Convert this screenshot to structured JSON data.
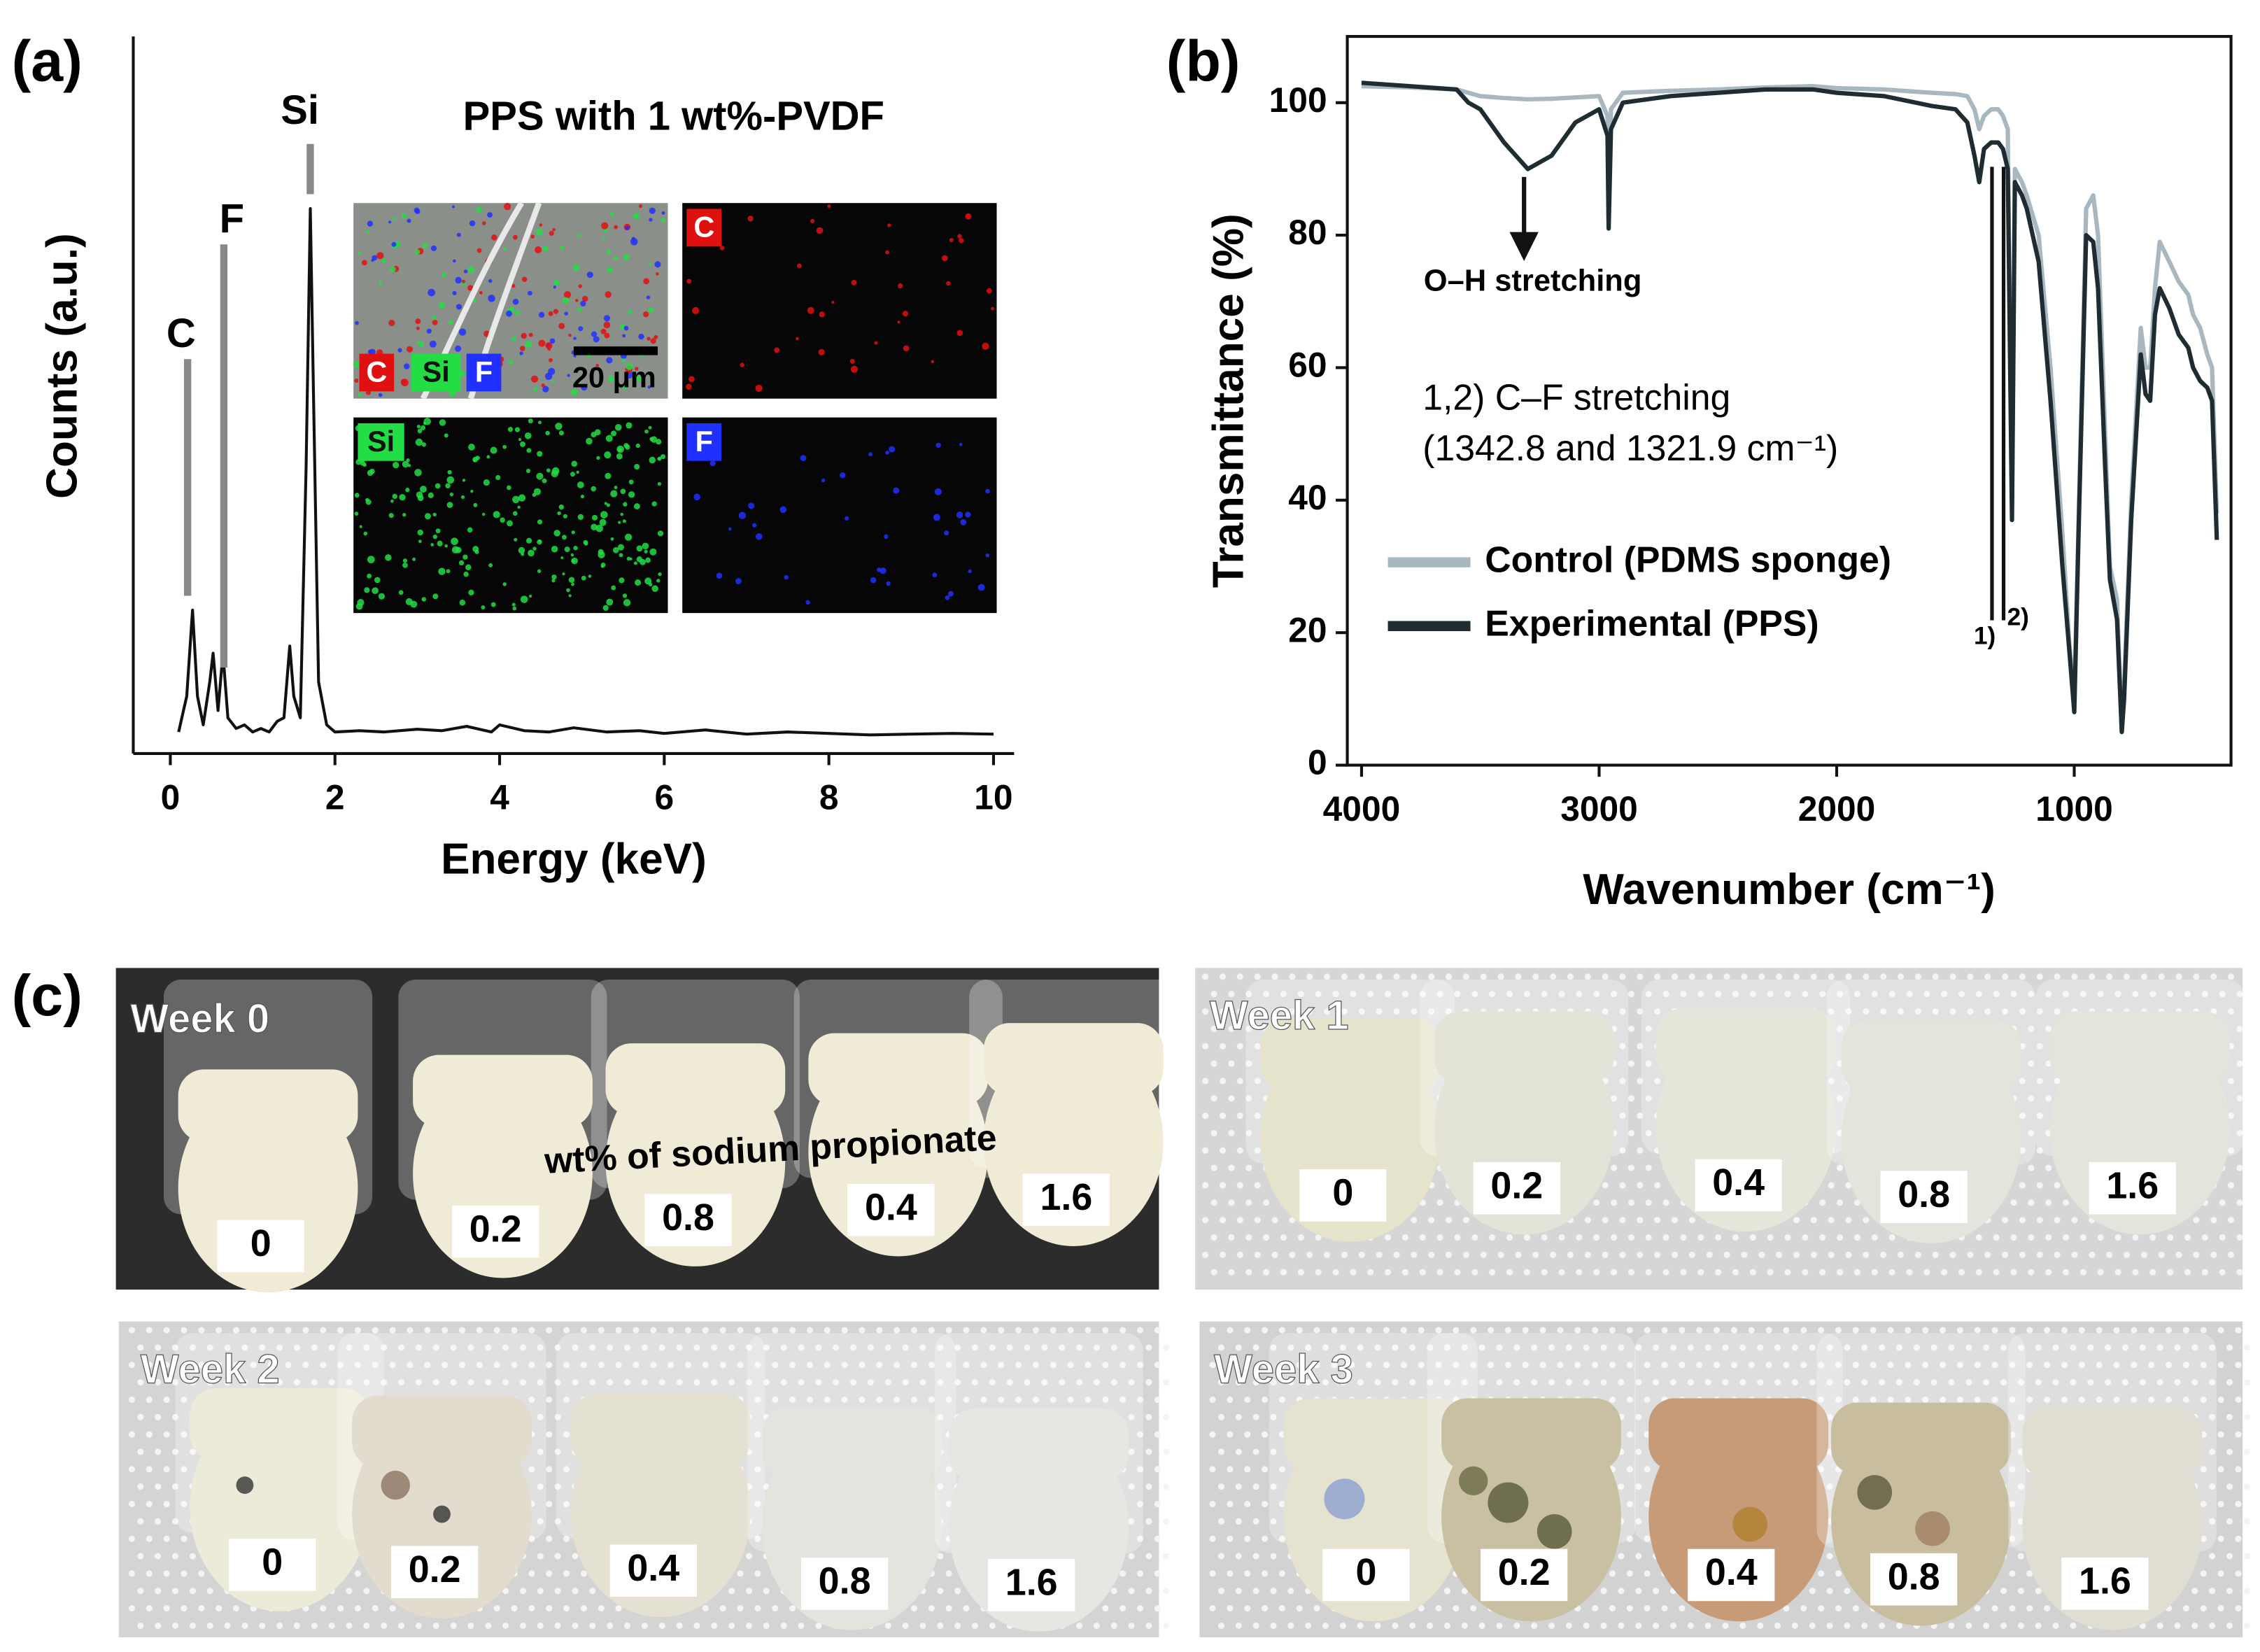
{
  "panel_labels": [
    "(a)",
    "(b)",
    "(c)"
  ],
  "chart_data": [
    {
      "type": "line",
      "xlabel": "Energy (keV)",
      "ylabel": "Counts (a.u.)",
      "xlim": [
        -0.45,
        10.25
      ],
      "ylim": [
        0,
        100
      ],
      "xticks": [
        0,
        2,
        4,
        6,
        8,
        10
      ],
      "color": "#111111",
      "annotations": [
        "C",
        "F",
        "Si"
      ],
      "inset": {
        "title": "PPS with 1 wt%-PVDF",
        "scale_bar": "20 μm",
        "maps": [
          {
            "label": "C",
            "color": "#e01010"
          },
          {
            "label": "Si",
            "color": "#22dd44"
          },
          {
            "label": "F",
            "color": "#2030ff"
          }
        ]
      },
      "x": [
        0.1,
        0.2,
        0.27,
        0.33,
        0.4,
        0.48,
        0.52,
        0.58,
        0.64,
        0.7,
        0.8,
        0.9,
        1.0,
        1.1,
        1.2,
        1.3,
        1.38,
        1.45,
        1.5,
        1.58,
        1.65,
        1.7,
        1.74,
        1.8,
        1.9,
        2.0,
        2.3,
        2.6,
        3.0,
        3.3,
        3.6,
        3.9,
        4.0,
        4.3,
        4.6,
        4.9,
        5.3,
        5.7,
        6.0,
        6.5,
        7.0,
        7.5,
        8.0,
        8.5,
        9.0,
        9.5,
        10.0
      ],
      "values": [
        3,
        8,
        20,
        8,
        4,
        10,
        14,
        6,
        14,
        5,
        3.5,
        4,
        3,
        3.5,
        3,
        4.5,
        5,
        15,
        8,
        5,
        40,
        76,
        50,
        10,
        4,
        3,
        3.2,
        3,
        3.4,
        3.2,
        3.8,
        3,
        4,
        3.2,
        3,
        3.6,
        3,
        3.2,
        2.8,
        3.3,
        2.7,
        3,
        2.8,
        2.6,
        2.7,
        2.8,
        2.7
      ]
    },
    {
      "type": "line",
      "xlabel": "Wavenumber (cm⁻¹)",
      "ylabel": "Transmittance (%)",
      "xlim": [
        4060,
        340
      ],
      "ylim": [
        0,
        110
      ],
      "xticks": [
        4000,
        3000,
        2000,
        1000
      ],
      "yticks": [
        0,
        20,
        40,
        60,
        80,
        100
      ],
      "legend": "lower left",
      "annotations": [
        "O–H stretching",
        "1,2) C–F stretching",
        "(1342.8 and 1321.9 cm⁻¹)",
        "1)",
        "2)"
      ],
      "x": [
        4000,
        3800,
        3600,
        3550,
        3500,
        3400,
        3300,
        3200,
        3100,
        3000,
        2965,
        2960,
        2950,
        2900,
        2700,
        2500,
        2300,
        2100,
        2000,
        1800,
        1600,
        1500,
        1450,
        1420,
        1400,
        1380,
        1350,
        1320,
        1300,
        1280,
        1262,
        1250,
        1220,
        1200,
        1150,
        1100,
        1080,
        1050,
        1020,
        1000,
        980,
        950,
        920,
        900,
        870,
        850,
        820,
        800,
        790,
        760,
        720,
        700,
        680,
        660,
        640,
        600,
        560,
        520,
        500,
        470,
        440,
        420,
        400
      ],
      "series": [
        {
          "name": "Control (PDMS sponge)",
          "color": "#a9b8c0",
          "values": [
            102.5,
            102.3,
            102,
            101.5,
            101,
            100.7,
            100.5,
            100.6,
            100.8,
            101,
            98,
            82,
            99,
            101.5,
            101.8,
            102,
            102.3,
            102.5,
            102.2,
            102,
            101.5,
            101.3,
            101,
            99,
            96,
            98,
            99,
            99,
            98,
            96,
            39,
            90,
            88,
            86,
            80,
            60,
            50,
            35,
            18,
            10,
            40,
            84,
            86,
            80,
            50,
            30,
            25,
            5,
            12,
            40,
            66,
            60,
            60,
            72,
            79,
            76,
            73,
            71,
            68,
            66,
            62,
            60,
            38
          ]
        },
        {
          "name": "Experimental (PPS)",
          "color": "#1f2d33",
          "values": [
            103,
            102.5,
            102,
            100,
            99,
            94,
            90,
            92,
            97,
            99,
            95,
            81,
            96,
            100,
            101,
            101.5,
            102,
            102,
            101.5,
            101,
            99.5,
            99,
            97,
            92,
            88,
            93,
            94,
            94,
            93,
            90,
            37,
            88,
            86,
            84,
            76,
            55,
            45,
            30,
            17,
            8,
            38,
            80,
            79,
            72,
            45,
            28,
            22,
            5,
            10,
            37,
            62,
            56,
            55,
            68,
            72,
            69,
            65,
            63,
            60,
            58,
            57,
            55,
            34
          ]
        }
      ]
    }
  ],
  "photos": {
    "caption": "wt% of sodium propionate",
    "panels": [
      {
        "label": "Week 0",
        "samples": [
          "0",
          "0.2",
          "0.8",
          "0.4",
          "1.6"
        ]
      },
      {
        "label": "Week 1",
        "samples": [
          "0",
          "0.2",
          "0.4",
          "0.8",
          "1.6"
        ]
      },
      {
        "label": "Week 2",
        "samples": [
          "0",
          "0.2",
          "0.4",
          "0.8",
          "1.6"
        ]
      },
      {
        "label": "Week 3",
        "samples": [
          "0",
          "0.2",
          "0.4",
          "0.8",
          "1.6"
        ]
      }
    ]
  }
}
